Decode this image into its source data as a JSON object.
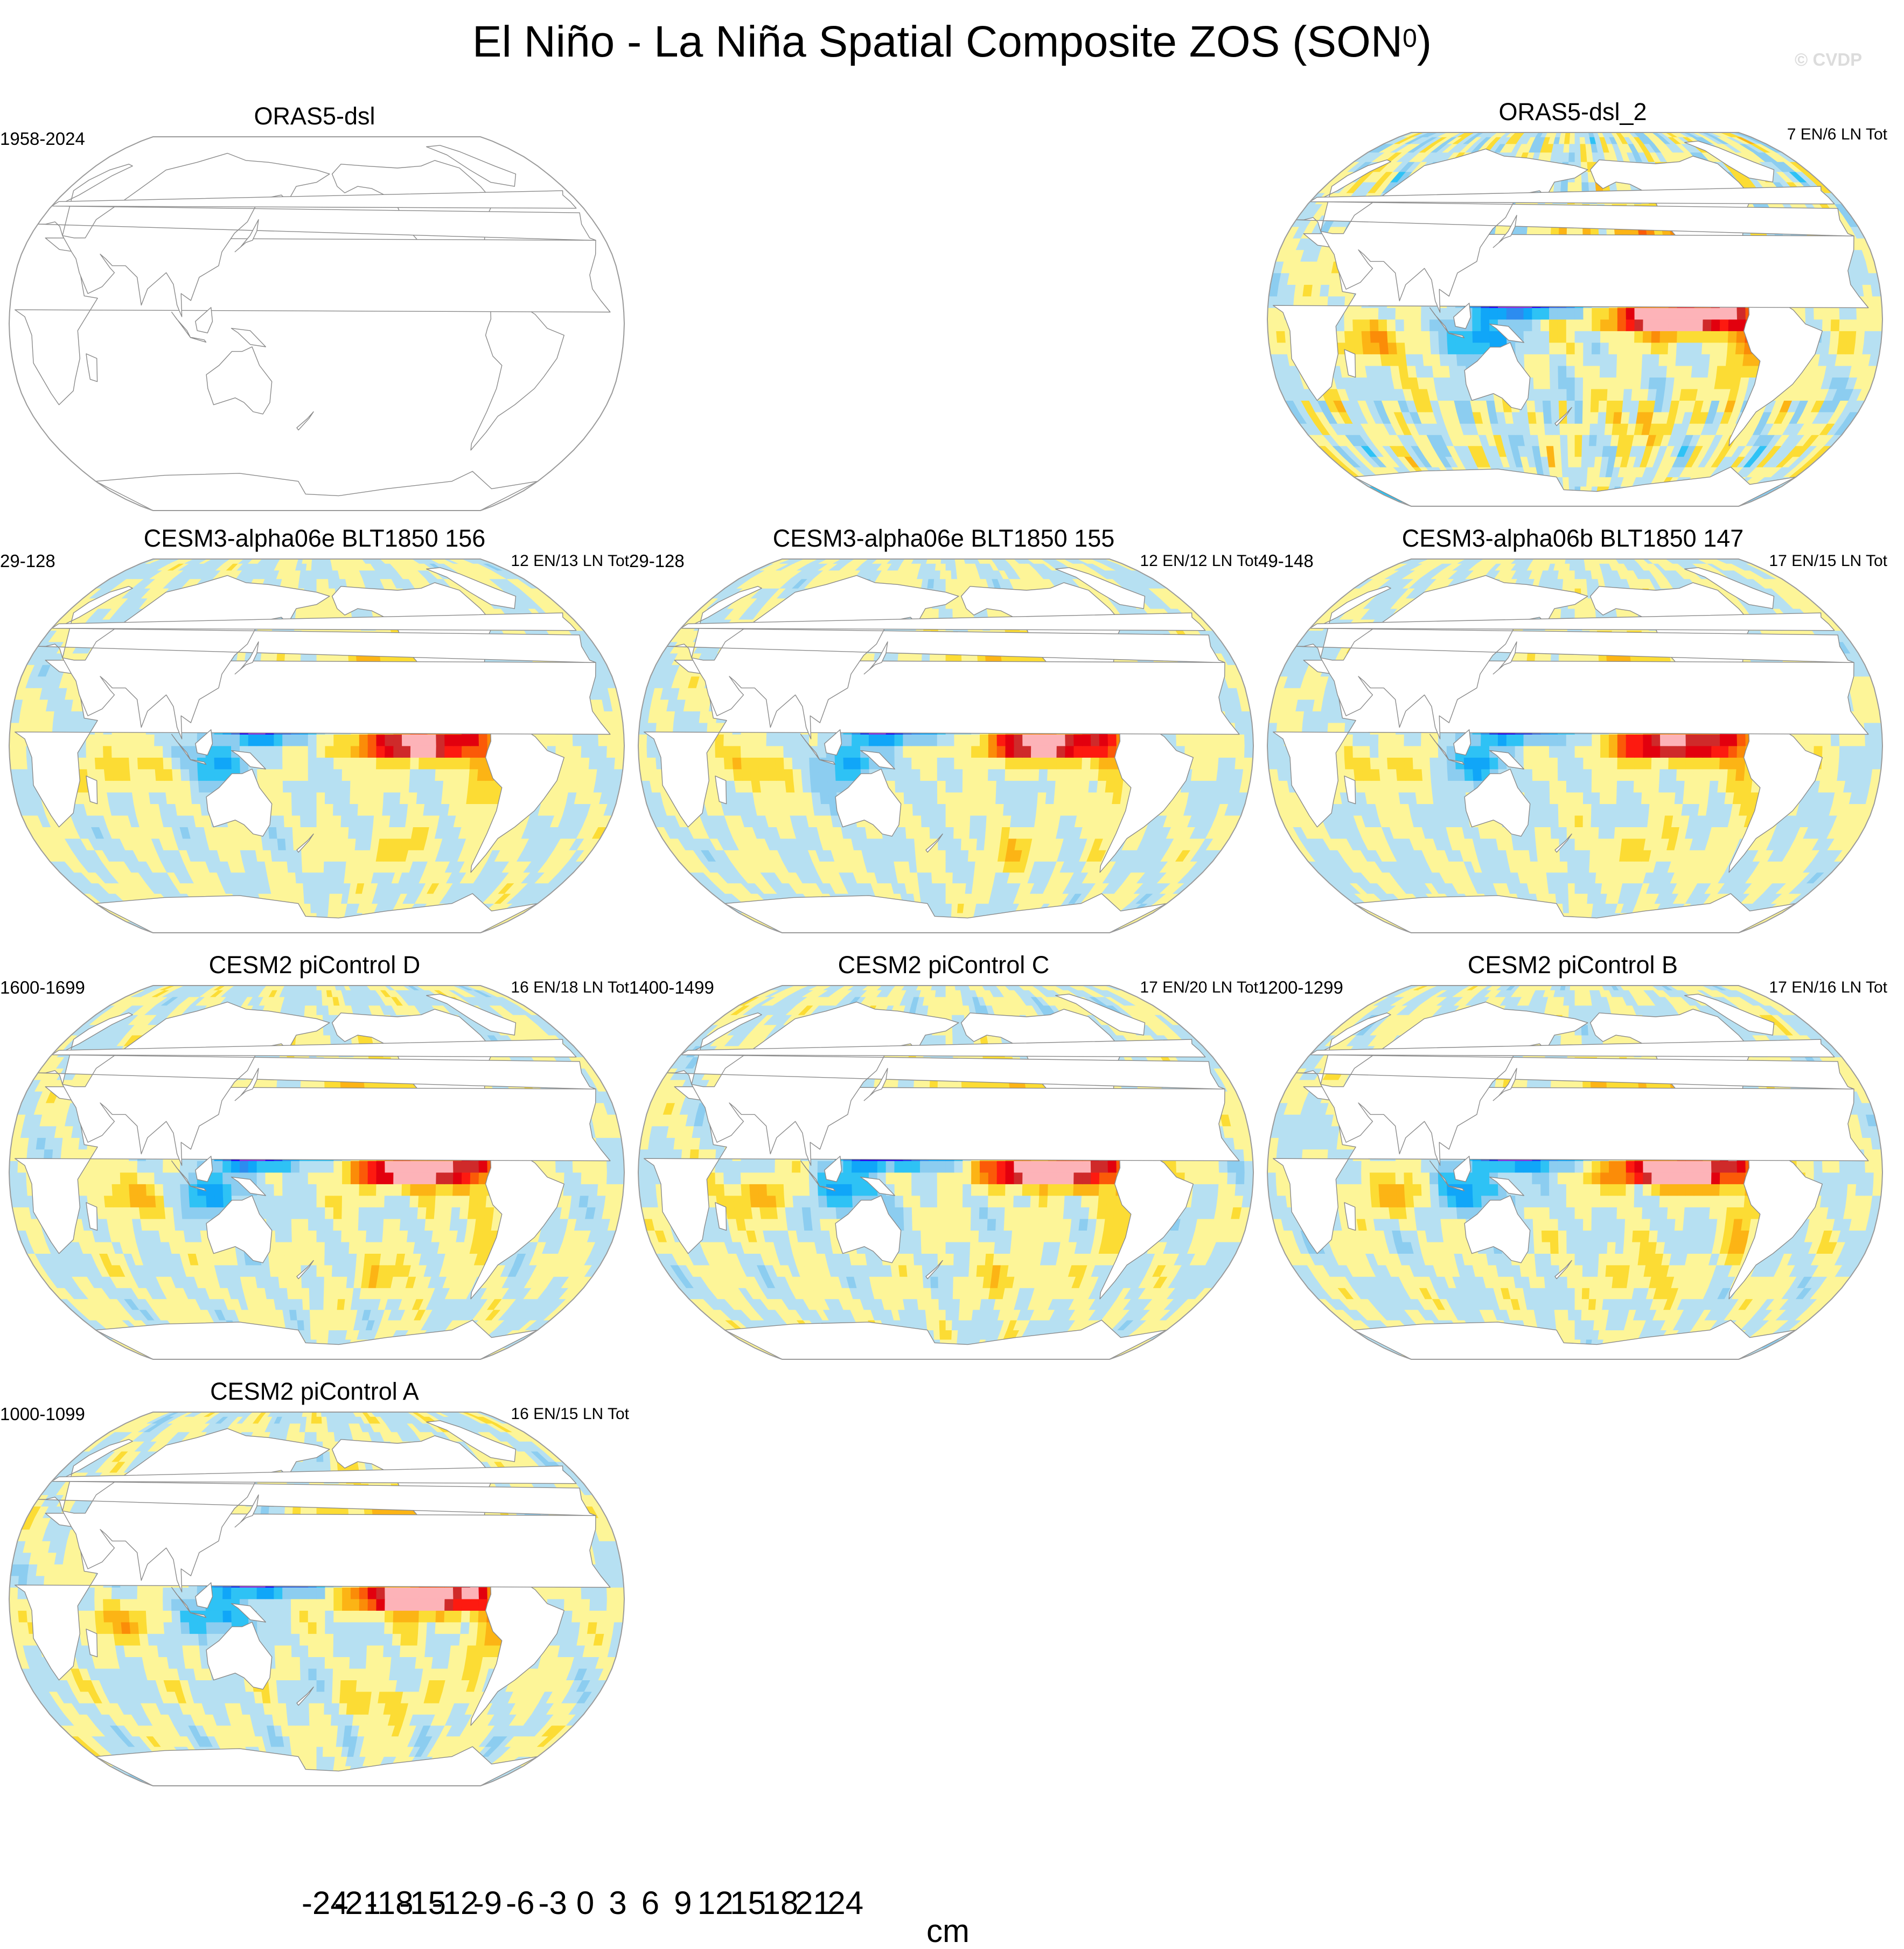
{
  "title": "El Niño - La Niña Spatial Composite ZOS (SON",
  "title_sup": "0",
  "title_close": ")",
  "watermark": "© CVDP",
  "chart_data": {
    "type": "heatmap",
    "projection": "Robinson, centered on the Pacific (180°)",
    "variable": "ZOS",
    "season": "SON",
    "units": "cm",
    "levels": [
      -24,
      -21,
      -18,
      -15,
      -12,
      -9,
      -6,
      -3,
      0,
      3,
      6,
      9,
      12,
      15,
      18,
      21,
      24
    ],
    "tick_labels": [
      "-24",
      "-21",
      "-18",
      "-15",
      "-12",
      "-9",
      "-6",
      "-3",
      "0",
      "3",
      "6",
      "9",
      "12",
      "15",
      "18",
      "21",
      "24"
    ],
    "colors": [
      "#8a2be2",
      "#2a00f0",
      "#2231ea",
      "#3b6ae0",
      "#2c8cf0",
      "#10a6f8",
      "#2ec2f5",
      "#8ccdf0",
      "#b6e0f2",
      "#fdf598",
      "#fcdc34",
      "#fcb415",
      "#fb8c08",
      "#fb5a08",
      "#fd1a10",
      "#e2000e",
      "#cf2a2a",
      "#fdb3b8"
    ],
    "panels": [
      {
        "title": "ORAS5-dsl",
        "years": "1958-2024",
        "counts": "",
        "has_data": false
      },
      {
        "title": "ORAS5-dsl_2",
        "years": "",
        "counts": "7 EN/6 LN Tot",
        "has_data": true
      },
      {
        "title": "CESM3-alpha06e BLT1850 156",
        "years": "29-128",
        "counts": "12 EN/13 LN Tot",
        "has_data": true
      },
      {
        "title": "CESM3-alpha06e BLT1850 155",
        "years": "29-128",
        "counts": "12 EN/12 LN Tot",
        "has_data": true
      },
      {
        "title": "CESM3-alpha06b BLT1850 147",
        "years": "49-148",
        "counts": "17 EN/15 LN Tot",
        "has_data": true
      },
      {
        "title": "CESM2 piControl D",
        "years": "1600-1699",
        "counts": "16 EN/18 LN Tot",
        "has_data": true
      },
      {
        "title": "CESM2 piControl C",
        "years": "1400-1499",
        "counts": "17 EN/20 LN Tot",
        "has_data": true
      },
      {
        "title": "CESM2 piControl B",
        "years": "1200-1299",
        "counts": "17 EN/16 LN Tot",
        "has_data": true
      },
      {
        "title": "CESM2 piControl A",
        "years": "1000-1099",
        "counts": "16 EN/15 LN Tot",
        "has_data": true
      }
    ]
  }
}
